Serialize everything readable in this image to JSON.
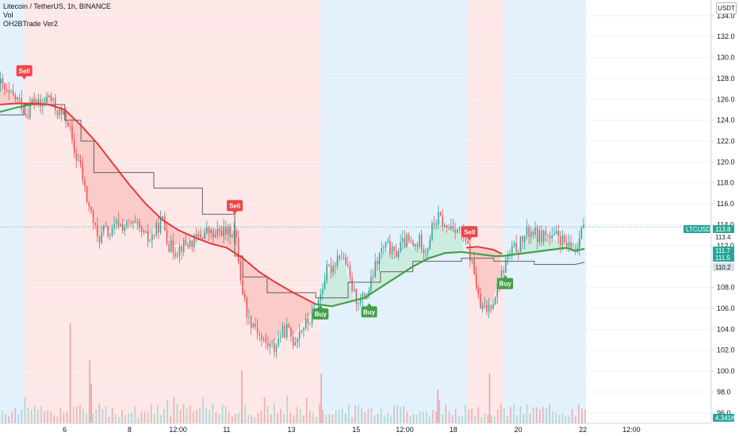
{
  "header": {
    "title": "Litecoin / TetherUS, 1h, BINANCE",
    "indicator_1": "Vol",
    "indicator_2": "OH2BTrade Ver2",
    "currency": "USDT"
  },
  "colors": {
    "background": "#ffffff",
    "bull_candle": "#26a69a",
    "bear_candle": "#ef5350",
    "bull_volume": "#eda3a3",
    "bear_volume": "#eda3a3",
    "buy_tag": "#43a047",
    "sell_tag": "#ef4444",
    "red_zone": "#fde7e7",
    "blue_zone": "#e3f1fc",
    "red_line": "#e53935",
    "green_line": "#43a047",
    "red_fill": "#f9c2c0",
    "green_fill": "#c8ebd9",
    "step_line": "#616161",
    "axis_border": "#d1d4dc"
  },
  "chart_data": {
    "type": "candlestick",
    "symbol": "LTCUSDT",
    "interval": "1h",
    "y_ticks": [
      96.0,
      98.0,
      100.0,
      102.0,
      104.0,
      106.0,
      108.0,
      110.0,
      112.0,
      114.0,
      116.0,
      118.0,
      120.0,
      122.0,
      124.0,
      126.0,
      128.0,
      130.0,
      132.0,
      134.0
    ],
    "y_tick_labels": [
      "96.0",
      "98.0",
      "100.0",
      "102.0",
      "104.0",
      "106.0",
      "108.0",
      "110.0",
      "112.0",
      "114.0",
      "116.0",
      "118.0",
      "120.0",
      "122.0",
      "124.0",
      "126.0",
      "128.0",
      "130.0",
      "132.0",
      "134.0"
    ],
    "ylim": [
      95.0,
      135.5
    ],
    "x_labels": [
      {
        "x": 4,
        "label": "6"
      },
      {
        "x": 8,
        "label": "8"
      },
      {
        "x": 11,
        "label": "12:00"
      },
      {
        "x": 14,
        "label": "11"
      },
      {
        "x": 18,
        "label": "13"
      },
      {
        "x": 22,
        "label": "15"
      },
      {
        "x": 25,
        "label": "12:00"
      },
      {
        "x": 28,
        "label": "18"
      },
      {
        "x": 32,
        "label": "20"
      },
      {
        "x": 36,
        "label": "22"
      },
      {
        "x": 39,
        "label": "12:00"
      }
    ],
    "xlim": [
      0,
      43
    ],
    "zones": [
      {
        "from": 0,
        "to": 1.5,
        "kind": "blue"
      },
      {
        "from": 1.5,
        "to": 19.8,
        "kind": "red"
      },
      {
        "from": 19.8,
        "to": 28.9,
        "kind": "blue"
      },
      {
        "from": 28.9,
        "to": 31.1,
        "kind": "red"
      },
      {
        "from": 31.1,
        "to": 36.2,
        "kind": "blue"
      }
    ],
    "close_path": [
      [
        0,
        127.5
      ],
      [
        0.4,
        126.5
      ],
      [
        0.8,
        126.2
      ],
      [
        1.2,
        125.8
      ],
      [
        1.6,
        124.5
      ],
      [
        2.0,
        126.0
      ],
      [
        2.5,
        125.2
      ],
      [
        3.0,
        126.4
      ],
      [
        3.4,
        125.0
      ],
      [
        3.8,
        124.5
      ],
      [
        4.2,
        123.8
      ],
      [
        4.5,
        121.0
      ],
      [
        4.9,
        119.8
      ],
      [
        5.3,
        116.5
      ],
      [
        5.7,
        114.5
      ],
      [
        6.0,
        112.5
      ],
      [
        6.4,
        113.5
      ],
      [
        6.8,
        113.0
      ],
      [
        7.2,
        114.2
      ],
      [
        7.6,
        113.8
      ],
      [
        8.0,
        114.0
      ],
      [
        8.4,
        113.8
      ],
      [
        8.8,
        113.0
      ],
      [
        9.2,
        112.5
      ],
      [
        9.6,
        113.5
      ],
      [
        10.0,
        114.5
      ],
      [
        10.4,
        112.0
      ],
      [
        10.8,
        111.5
      ],
      [
        11.2,
        112.0
      ],
      [
        11.6,
        112.2
      ],
      [
        12.0,
        112.5
      ],
      [
        12.4,
        113.0
      ],
      [
        12.8,
        113.4
      ],
      [
        13.2,
        112.8
      ],
      [
        13.6,
        113.5
      ],
      [
        14.0,
        113.2
      ],
      [
        14.4,
        113.5
      ],
      [
        14.6,
        112.0
      ],
      [
        14.9,
        108.0
      ],
      [
        15.3,
        105.0
      ],
      [
        15.7,
        104.5
      ],
      [
        16.1,
        103.0
      ],
      [
        16.5,
        102.5
      ],
      [
        16.9,
        102.2
      ],
      [
        17.3,
        103.5
      ],
      [
        17.7,
        104.0
      ],
      [
        18.1,
        102.8
      ],
      [
        18.5,
        104.0
      ],
      [
        18.9,
        104.6
      ],
      [
        19.3,
        105.2
      ],
      [
        19.7,
        107.0
      ],
      [
        20.1,
        109.5
      ],
      [
        20.5,
        110.0
      ],
      [
        20.9,
        111.3
      ],
      [
        21.3,
        110.5
      ],
      [
        21.6,
        108.5
      ],
      [
        21.9,
        107.0
      ],
      [
        22.3,
        106.8
      ],
      [
        22.7,
        107.5
      ],
      [
        23.1,
        109.8
      ],
      [
        23.5,
        111.5
      ],
      [
        23.9,
        112.0
      ],
      [
        24.3,
        111.0
      ],
      [
        24.7,
        112.0
      ],
      [
        25.1,
        112.5
      ],
      [
        25.5,
        111.8
      ],
      [
        25.9,
        112.5
      ],
      [
        26.3,
        111.5
      ],
      [
        26.7,
        114.0
      ],
      [
        27.1,
        114.8
      ],
      [
        27.5,
        113.5
      ],
      [
        27.9,
        114.0
      ],
      [
        28.3,
        113.5
      ],
      [
        28.7,
        112.5
      ],
      [
        29.0,
        111.0
      ],
      [
        29.3,
        109.0
      ],
      [
        29.6,
        106.0
      ],
      [
        30.0,
        105.8
      ],
      [
        30.4,
        106.8
      ],
      [
        30.8,
        108.5
      ],
      [
        31.2,
        110.5
      ],
      [
        31.6,
        111.5
      ],
      [
        32.0,
        112.0
      ],
      [
        32.4,
        113.0
      ],
      [
        32.8,
        113.5
      ],
      [
        33.2,
        112.8
      ],
      [
        33.6,
        113.2
      ],
      [
        34.0,
        112.5
      ],
      [
        34.4,
        113.0
      ],
      [
        34.8,
        112.2
      ],
      [
        35.2,
        111.5
      ],
      [
        35.6,
        111.8
      ],
      [
        35.9,
        114.5
      ],
      [
        36.1,
        113.8
      ]
    ],
    "red_line": [
      [
        0,
        125.5
      ],
      [
        1,
        125.6
      ],
      [
        2,
        125.6
      ],
      [
        3,
        125.5
      ],
      [
        4,
        125.0
      ],
      [
        5,
        123.5
      ],
      [
        6,
        121.8
      ],
      [
        7,
        119.8
      ],
      [
        8,
        117.8
      ],
      [
        9,
        116.0
      ],
      [
        10,
        114.5
      ],
      [
        11,
        113.5
      ],
      [
        12,
        112.8
      ],
      [
        13,
        112.2
      ],
      [
        14,
        111.8
      ],
      [
        15,
        110.8
      ],
      [
        16,
        109.5
      ],
      [
        17,
        108.5
      ],
      [
        18,
        107.6
      ],
      [
        19,
        106.8
      ],
      [
        19.5,
        106.4
      ]
    ],
    "red_line_2": [
      [
        28.8,
        111.8
      ],
      [
        29.5,
        111.9
      ],
      [
        30.5,
        111.6
      ],
      [
        31.0,
        111.2
      ]
    ],
    "green_line": [
      [
        0,
        124.8
      ],
      [
        1,
        125.2
      ],
      [
        2,
        125.5
      ],
      [
        19.5,
        106.4
      ],
      [
        20.5,
        106.2
      ],
      [
        21.5,
        106.6
      ],
      [
        22.5,
        107.0
      ],
      [
        23.5,
        108.0
      ],
      [
        24.5,
        109.0
      ],
      [
        25.5,
        110.0
      ],
      [
        26.5,
        110.8
      ],
      [
        27.5,
        111.3
      ],
      [
        28.5,
        111.4
      ],
      [
        29.5,
        111.2
      ],
      [
        30.5,
        111.0
      ],
      [
        31.0,
        111.0
      ],
      [
        32.0,
        111.2
      ],
      [
        33.0,
        111.4
      ],
      [
        34.0,
        111.6
      ],
      [
        35.0,
        111.8
      ],
      [
        35.5,
        111.5
      ],
      [
        36.1,
        111.7
      ]
    ],
    "step_line": [
      [
        0,
        124.5
      ],
      [
        1.5,
        124.5
      ],
      [
        1.5,
        125.5
      ],
      [
        4.0,
        125.5
      ],
      [
        4.0,
        124.0
      ],
      [
        5.0,
        124.0
      ],
      [
        5.0,
        122.0
      ],
      [
        5.8,
        122.0
      ],
      [
        5.8,
        119.0
      ],
      [
        9.5,
        119.0
      ],
      [
        9.5,
        117.5
      ],
      [
        12.5,
        117.5
      ],
      [
        12.5,
        115.0
      ],
      [
        14.5,
        115.0
      ],
      [
        14.5,
        111.0
      ],
      [
        15.0,
        111.0
      ],
      [
        15.0,
        109.0
      ],
      [
        16.5,
        109.0
      ],
      [
        16.5,
        107.5
      ],
      [
        19.5,
        107.5
      ],
      [
        19.5,
        107.0
      ],
      [
        21.5,
        107.0
      ],
      [
        21.5,
        108.5
      ],
      [
        23.5,
        108.5
      ],
      [
        23.5,
        109.5
      ],
      [
        25.5,
        109.5
      ],
      [
        25.5,
        110.5
      ],
      [
        28.5,
        110.5
      ],
      [
        28.5,
        110.8
      ],
      [
        30.5,
        110.8
      ],
      [
        30.5,
        110.5
      ],
      [
        33.0,
        110.5
      ],
      [
        33.0,
        110.2
      ],
      [
        35.5,
        110.2
      ],
      [
        36.1,
        110.4
      ]
    ],
    "current_price": 113.8,
    "price_tags": [
      {
        "label": "LTCUSDT",
        "value": 113.8,
        "kind": "symbol"
      },
      {
        "label": "113.8",
        "value": 113.8,
        "kind": "green"
      },
      {
        "label": "113.4",
        "value": 113.4,
        "kind": "plain"
      },
      {
        "label": "111.7",
        "value": 111.7,
        "kind": "green"
      },
      {
        "label": "111.5",
        "value": 111.5,
        "kind": "green"
      },
      {
        "label": "110.2",
        "value": 110.2,
        "kind": "gray"
      },
      {
        "label": "4.341K",
        "value": null,
        "kind": "green-volume"
      }
    ],
    "signals": [
      {
        "label": "Sell",
        "x": 1.5,
        "y": 128.2,
        "kind": "sell"
      },
      {
        "label": "Sell",
        "x": 14.5,
        "y": 115.3,
        "kind": "sell"
      },
      {
        "label": "Buy",
        "x": 19.8,
        "y": 106.0,
        "kind": "buy"
      },
      {
        "label": "Buy",
        "x": 22.8,
        "y": 106.2,
        "kind": "buy"
      },
      {
        "label": "Sell",
        "x": 29.0,
        "y": 112.8,
        "kind": "sell"
      },
      {
        "label": "Buy",
        "x": 31.2,
        "y": 108.9,
        "kind": "buy"
      }
    ],
    "volume_spikes": [
      {
        "x": 4.3,
        "value": 3.0
      },
      {
        "x": 5.5,
        "value": 1.9
      },
      {
        "x": 5.6,
        "value": 1.2
      },
      {
        "x": 14.9,
        "value": 1.6
      },
      {
        "x": 19.8,
        "value": 1.5
      },
      {
        "x": 27.0,
        "value": 1.0
      },
      {
        "x": 30.2,
        "value": 1.5
      }
    ]
  }
}
